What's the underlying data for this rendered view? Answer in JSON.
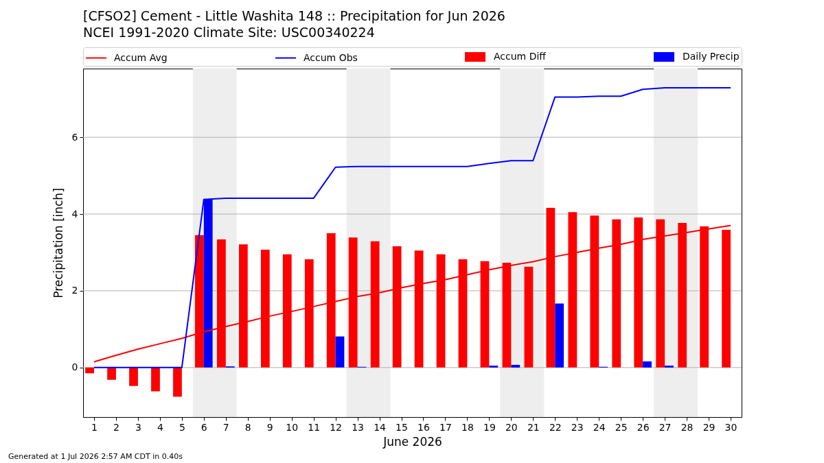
{
  "chart_data": {
    "type": "bar",
    "title": "[CFSO2] Cement - Little Washita 148 :: Precipitation for Jun 2026",
    "subtitle": "NCEI 1991-2020 Climate Site: USC00340224",
    "xlabel": "June 2026",
    "ylabel": "Precipitation [inch]",
    "x": [
      1,
      2,
      3,
      4,
      5,
      6,
      7,
      8,
      9,
      10,
      11,
      12,
      13,
      14,
      15,
      16,
      17,
      18,
      19,
      20,
      21,
      22,
      23,
      24,
      25,
      26,
      27,
      28,
      29,
      30
    ],
    "xlim": [
      0.5,
      30.5
    ],
    "xticks": [
      1,
      2,
      3,
      4,
      5,
      6,
      7,
      8,
      9,
      10,
      11,
      12,
      13,
      14,
      15,
      16,
      17,
      18,
      19,
      20,
      21,
      22,
      23,
      24,
      25,
      26,
      27,
      28,
      29,
      30
    ],
    "ylim": [
      -1.29,
      7.79
    ],
    "yticks": [
      0,
      2,
      4,
      6
    ],
    "grid": "y",
    "legend": "top",
    "series": [
      {
        "name": "Accum Avg",
        "type": "line",
        "color": "#ff0000",
        "values": [
          0.15,
          0.32,
          0.48,
          0.62,
          0.76,
          0.93,
          1.07,
          1.2,
          1.34,
          1.46,
          1.59,
          1.72,
          1.85,
          1.95,
          2.08,
          2.19,
          2.29,
          2.42,
          2.55,
          2.66,
          2.76,
          2.89,
          3.0,
          3.11,
          3.21,
          3.34,
          3.43,
          3.52,
          3.61,
          3.7
        ]
      },
      {
        "name": "Accum Obs",
        "type": "line",
        "color": "#0000ff",
        "values": [
          0,
          0,
          0,
          0,
          0,
          4.38,
          4.41,
          4.41,
          4.41,
          4.41,
          4.41,
          5.22,
          5.24,
          5.24,
          5.24,
          5.24,
          5.24,
          5.24,
          5.32,
          5.39,
          5.39,
          7.05,
          7.05,
          7.07,
          7.07,
          7.25,
          7.29,
          7.29,
          7.29,
          7.29
        ]
      },
      {
        "name": "Accum Diff",
        "color": "#ff0000",
        "values": [
          -0.15,
          -0.32,
          -0.48,
          -0.62,
          -0.76,
          3.45,
          3.34,
          3.21,
          3.07,
          2.95,
          2.82,
          3.5,
          3.39,
          3.29,
          3.16,
          3.05,
          2.95,
          2.82,
          2.77,
          2.73,
          2.63,
          4.16,
          4.05,
          3.96,
          3.86,
          3.91,
          3.86,
          3.77,
          3.68,
          3.59
        ]
      },
      {
        "name": "Daily Precip",
        "color": "#0000ff",
        "values": [
          0,
          0,
          0,
          0,
          0,
          4.38,
          0.03,
          0,
          0,
          0,
          0,
          0.81,
          0.02,
          0,
          0,
          0,
          0,
          0,
          0.05,
          0.07,
          0,
          1.67,
          0,
          0.02,
          0,
          0.16,
          0.05,
          0,
          0,
          0
        ]
      }
    ],
    "bands": [
      {
        "axis": "x",
        "from": 5.5,
        "to": 7.5,
        "color": "#eeeeee"
      },
      {
        "axis": "x",
        "from": 12.5,
        "to": 14.5,
        "color": "#eeeeee"
      },
      {
        "axis": "x",
        "from": 19.5,
        "to": 21.5,
        "color": "#eeeeee"
      },
      {
        "axis": "x",
        "from": 26.5,
        "to": 28.5,
        "color": "#eeeeee"
      }
    ],
    "annotations": [
      "Generated at 1 Jul 2026 2:57 AM CDT in 0.40s"
    ]
  }
}
